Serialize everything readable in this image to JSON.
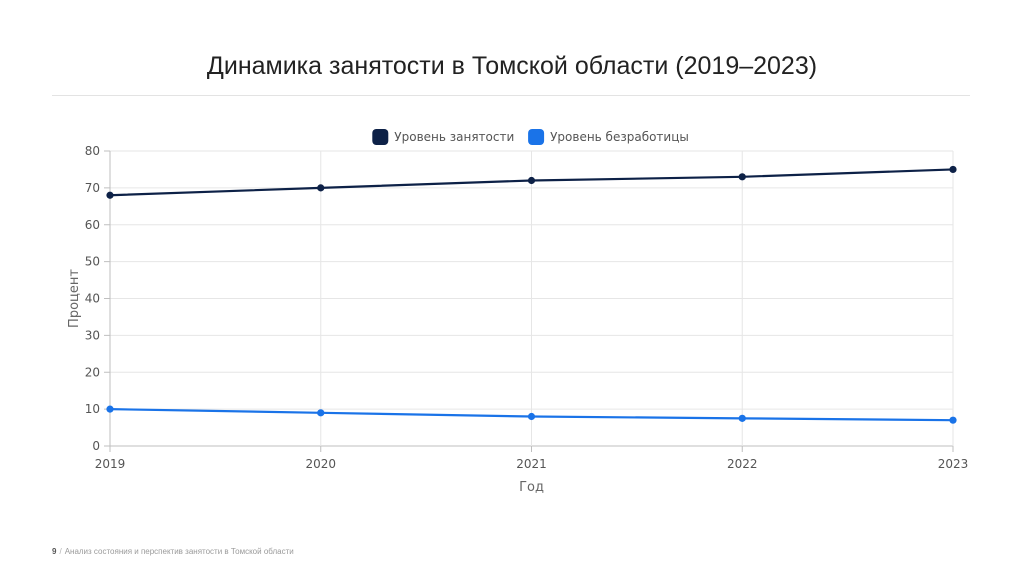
{
  "slide": {
    "title": "Динамика занятости в Томской области (2019–2023)",
    "page_number": "9",
    "footer_separator": "/",
    "footer_text": "Анализ состояния и перспектив занятости в Томской области"
  },
  "colors": {
    "employment": "#0d2147",
    "unemployment": "#1a73e8",
    "grid": "#e6e6e6",
    "axis": "#bfbfbf"
  },
  "chart_data": {
    "type": "line",
    "title": "",
    "xlabel": "Год",
    "ylabel": "Процент",
    "x": [
      "2019",
      "2020",
      "2021",
      "2022",
      "2023"
    ],
    "ylim": [
      0,
      80
    ],
    "yticks": [
      0,
      10,
      20,
      30,
      40,
      50,
      60,
      70,
      80
    ],
    "grid": true,
    "legend_position": "top-center",
    "series": [
      {
        "name": "Уровень занятости",
        "color": "#0d2147",
        "values": [
          68,
          70,
          72,
          73,
          75
        ]
      },
      {
        "name": "Уровень безработицы",
        "color": "#1a73e8",
        "values": [
          10,
          9,
          8,
          7.5,
          7
        ]
      }
    ]
  }
}
